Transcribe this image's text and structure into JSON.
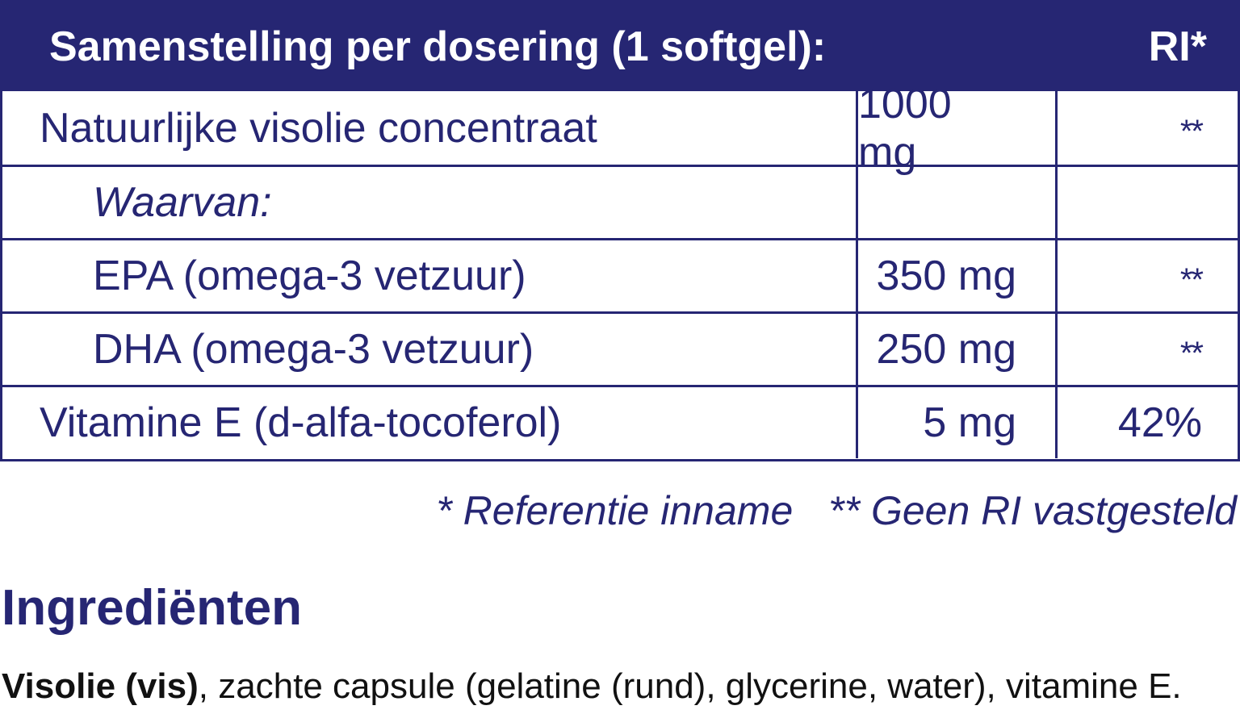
{
  "table": {
    "header": {
      "title": "Samenstelling per dosering (1 softgel):",
      "ri": "RI*"
    },
    "rows": [
      {
        "name": "Natuurlijke visolie concentraat",
        "amount": "1000 mg",
        "ri": "**"
      },
      {
        "name": "Waarvan:",
        "amount": "",
        "ri": ""
      },
      {
        "name": "EPA (omega-3 vetzuur)",
        "amount": "350 mg",
        "ri": "**"
      },
      {
        "name": "DHA (omega-3 vetzuur)",
        "amount": "250 mg",
        "ri": "**"
      },
      {
        "name": "Vitamine E (d-alfa-tocoferol)",
        "amount": "5 mg",
        "ri": "42%"
      }
    ]
  },
  "footnotes": {
    "reference": "* Referentie inname",
    "no_ri": "** Geen RI vastgesteld"
  },
  "ingredients": {
    "title": "Ingrediënten",
    "bold_part": "Visolie (vis)",
    "rest": ", zachte capsule (gelatine (rund), glycerine, water), vitamine E."
  },
  "colors": {
    "brand_navy": "#262673",
    "text": "#111111",
    "background": "#ffffff"
  }
}
